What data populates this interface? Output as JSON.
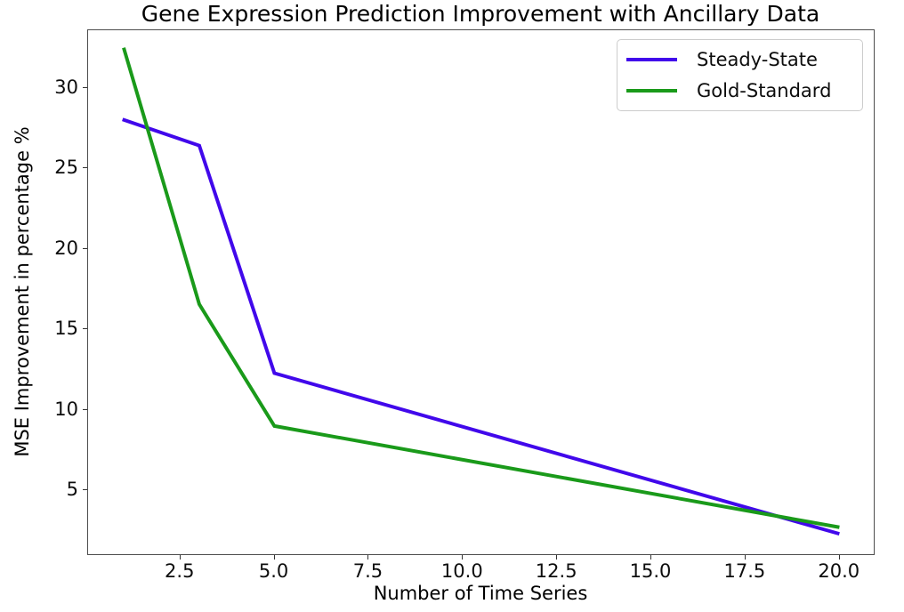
{
  "chart_data": {
    "type": "line",
    "title": "Gene Expression Prediction Improvement with Ancillary Data",
    "xlabel": "Number of Time Series",
    "ylabel": "MSE Improvement in percentage %",
    "xlim": [
      0.05,
      20.95
    ],
    "ylim": [
      0.9,
      33.6
    ],
    "x_ticks": [
      "2.5",
      "5.0",
      "7.5",
      "10.0",
      "12.5",
      "15.0",
      "17.5",
      "20.0"
    ],
    "y_ticks": [
      "5",
      "10",
      "15",
      "20",
      "25",
      "30"
    ],
    "grid": false,
    "legend_position": "upper right",
    "series": [
      {
        "name": "Steady-State",
        "color": "#4108EB",
        "x": [
          1,
          3,
          5,
          20
        ],
        "y": [
          28.0,
          26.4,
          12.2,
          2.2
        ]
      },
      {
        "name": "Gold-Standard",
        "color": "#1A9A1A",
        "x": [
          1,
          3,
          5,
          20
        ],
        "y": [
          32.4,
          16.5,
          8.9,
          2.6
        ]
      }
    ]
  }
}
